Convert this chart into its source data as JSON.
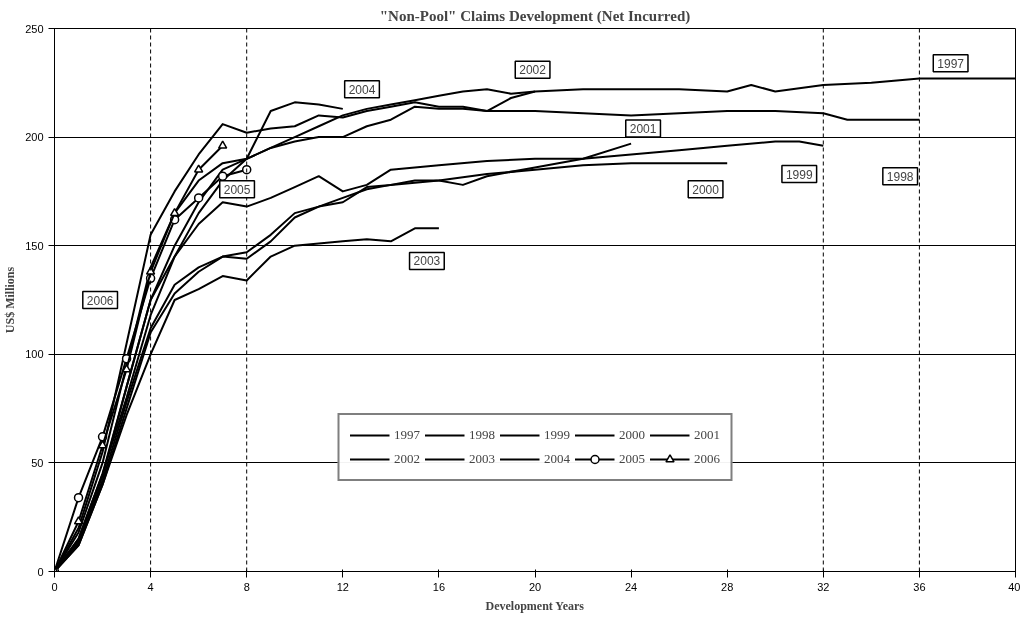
{
  "chart_data": {
    "type": "line",
    "title": "\"Non-Pool\" Claims Development (Net Incurred)",
    "xlabel": "Development Years",
    "ylabel": "US$ Millions",
    "xlim": [
      0,
      40
    ],
    "xticks": [
      0,
      4,
      8,
      12,
      16,
      20,
      24,
      28,
      32,
      36,
      40
    ],
    "ylim": [
      0,
      250
    ],
    "yticks": [
      0,
      50,
      100,
      150,
      200,
      250
    ],
    "grid": "y",
    "legend": "bottom",
    "marker": "none",
    "line_style": "solid",
    "ref_lines": [
      {
        "axis": "x",
        "value": 4,
        "line_style": "dashed"
      },
      {
        "axis": "x",
        "value": 8,
        "line_style": "dashed"
      },
      {
        "axis": "x",
        "value": 32,
        "line_style": "dashed"
      },
      {
        "axis": "x",
        "value": 36,
        "line_style": "dashed"
      }
    ],
    "series": [
      {
        "name": "1997",
        "color": "#000000",
        "x": [
          0,
          1,
          2,
          3,
          4,
          5,
          6,
          7,
          8,
          9,
          10,
          11,
          12,
          13,
          14,
          15,
          16,
          17,
          18,
          19,
          20,
          22,
          24,
          26,
          28,
          29,
          30,
          32,
          34,
          36,
          40
        ],
        "values": [
          0,
          15,
          45,
          80,
          118,
          145,
          165,
          180,
          190,
          195,
          200,
          205,
          210,
          213,
          215,
          217,
          219,
          221,
          222,
          220,
          221,
          222,
          222,
          222,
          221,
          224,
          221,
          224,
          225,
          227,
          227
        ]
      },
      {
        "name": "1998",
        "color": "#000000",
        "x": [
          0,
          1,
          2,
          3,
          4,
          5,
          6,
          7,
          8,
          9,
          10,
          11,
          12,
          13,
          14,
          15,
          16,
          17,
          18,
          20,
          22,
          24,
          26,
          28,
          30,
          32,
          33,
          36
        ],
        "values": [
          0,
          15,
          45,
          85,
          125,
          150,
          170,
          185,
          190,
          195,
          198,
          200,
          200,
          205,
          208,
          214,
          213,
          213,
          212,
          212,
          211,
          210,
          211,
          212,
          212,
          211,
          208,
          208
        ]
      },
      {
        "name": "1999",
        "color": "#000000",
        "x": [
          0,
          1,
          2,
          3,
          4,
          5,
          6,
          7,
          8,
          9,
          10,
          11,
          12,
          13,
          14,
          16,
          18,
          20,
          22,
          24,
          26,
          28,
          30,
          31,
          32
        ],
        "values": [
          0,
          14,
          44,
          85,
          125,
          145,
          160,
          170,
          168,
          172,
          177,
          182,
          175,
          178,
          185,
          187,
          189,
          190,
          190,
          192,
          194,
          196,
          198,
          198,
          196
        ]
      },
      {
        "name": "2000",
        "color": "#000000",
        "x": [
          0,
          1,
          2,
          3,
          4,
          5,
          6,
          7,
          8,
          9,
          10,
          11,
          12,
          13,
          14,
          16,
          18,
          20,
          22,
          24,
          26,
          28
        ],
        "values": [
          0,
          12,
          40,
          75,
          110,
          128,
          138,
          145,
          147,
          155,
          165,
          168,
          172,
          176,
          178,
          180,
          183,
          185,
          187,
          188,
          188,
          188
        ]
      },
      {
        "name": "2001",
        "color": "#000000",
        "x": [
          0,
          1,
          2,
          3,
          4,
          5,
          6,
          7,
          8,
          9,
          10,
          11,
          12,
          13,
          14,
          15,
          16,
          17,
          18,
          20,
          22,
          24
        ],
        "values": [
          0,
          13,
          42,
          78,
          112,
          132,
          140,
          145,
          144,
          152,
          163,
          168,
          170,
          177,
          178,
          180,
          180,
          178,
          182,
          186,
          190,
          197
        ]
      },
      {
        "name": "2002",
        "color": "#000000",
        "x": [
          0,
          1,
          2,
          3,
          4,
          5,
          6,
          7,
          8,
          9,
          10,
          11,
          12,
          13,
          14,
          15,
          16,
          17,
          18,
          19,
          20
        ],
        "values": [
          0,
          20,
          55,
          105,
          155,
          175,
          192,
          206,
          202,
          204,
          205,
          210,
          209,
          212,
          214,
          216,
          214,
          214,
          212,
          218,
          221
        ]
      },
      {
        "name": "2003",
        "color": "#000000",
        "x": [
          0,
          1,
          2,
          3,
          4,
          5,
          6,
          7,
          8,
          9,
          10,
          11,
          12,
          13,
          14,
          15,
          16
        ],
        "values": [
          0,
          12,
          40,
          72,
          100,
          125,
          130,
          136,
          134,
          145,
          150,
          151,
          152,
          153,
          152,
          158,
          158
        ]
      },
      {
        "name": "2004",
        "color": "#000000",
        "x": [
          0,
          1,
          2,
          3,
          4,
          5,
          6,
          7,
          8,
          9,
          10,
          11,
          12
        ],
        "values": [
          0,
          18,
          50,
          95,
          140,
          165,
          180,
          188,
          190,
          212,
          216,
          215,
          213
        ]
      },
      {
        "name": "2005",
        "color": "#000000",
        "marker": "circle",
        "x": [
          0,
          1,
          2,
          3,
          4,
          5,
          6,
          7,
          8
        ],
        "values": [
          0,
          34,
          62,
          98,
          135,
          162,
          172,
          182,
          185
        ]
      },
      {
        "name": "2006",
        "color": "#000000",
        "marker": "triangle",
        "x": [
          0,
          1,
          2,
          3,
          4,
          5,
          6,
          7
        ],
        "values": [
          0,
          23,
          58,
          93,
          138,
          165,
          185,
          196
        ]
      }
    ],
    "annotations": [
      {
        "text": "1997",
        "x": 37.3,
        "y": 234
      },
      {
        "text": "1998",
        "x": 35.2,
        "y": 182
      },
      {
        "text": "1999",
        "x": 31,
        "y": 183
      },
      {
        "text": "2000",
        "x": 27.1,
        "y": 176
      },
      {
        "text": "2001",
        "x": 24.5,
        "y": 204
      },
      {
        "text": "2002",
        "x": 19.9,
        "y": 231
      },
      {
        "text": "2003",
        "x": 15.5,
        "y": 143
      },
      {
        "text": "2004",
        "x": 12.8,
        "y": 222
      },
      {
        "text": "2005",
        "x": 7.6,
        "y": 176
      },
      {
        "text": "2006",
        "x": 1.9,
        "y": 125
      }
    ]
  }
}
